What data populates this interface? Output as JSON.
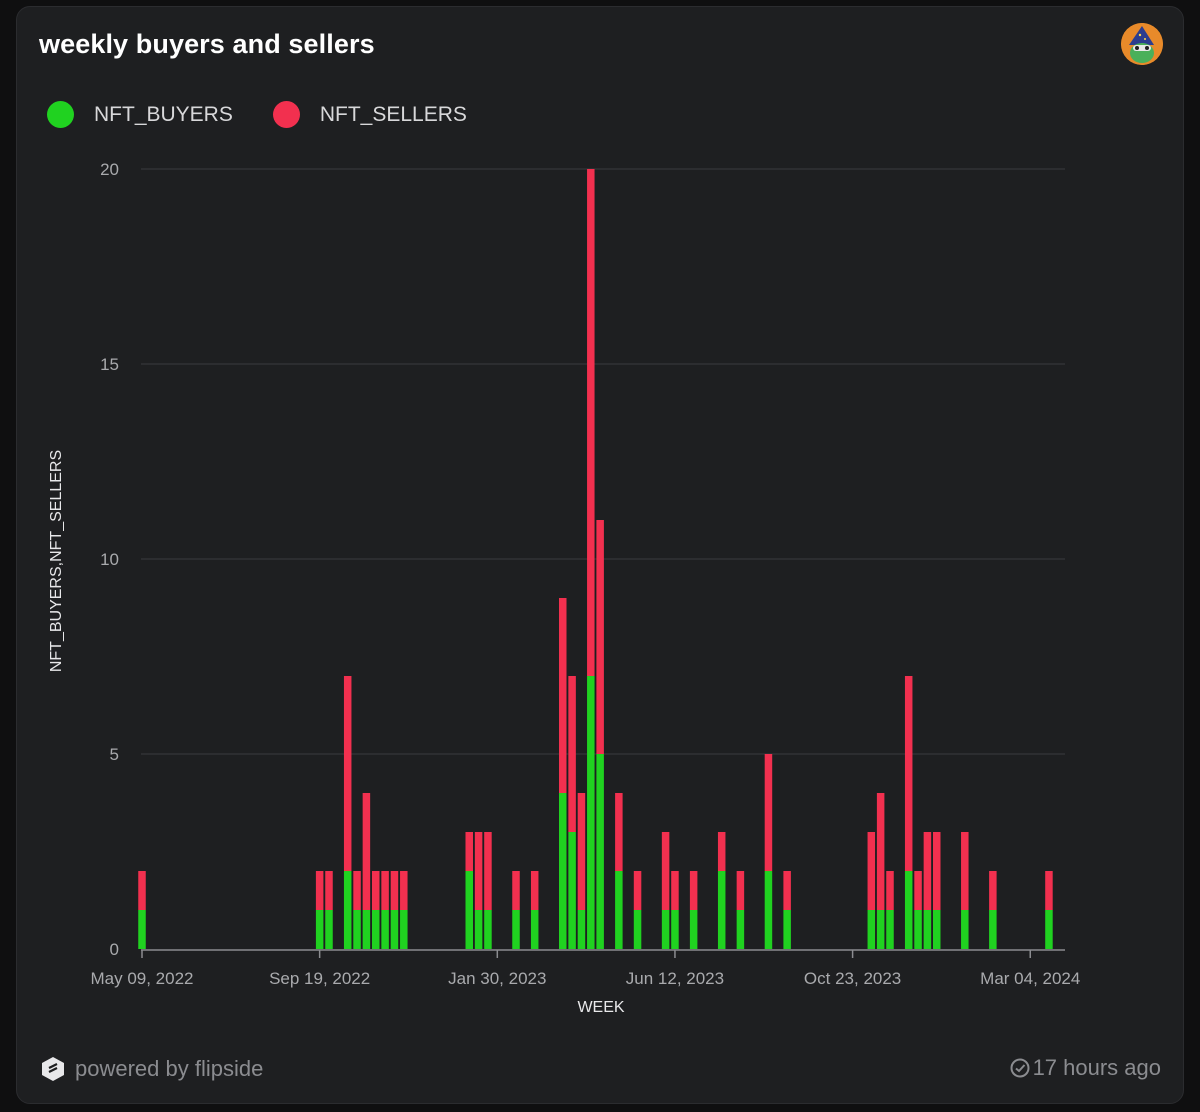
{
  "card": {
    "title": "weekly buyers and sellers",
    "powered_by": "powered by flipside",
    "updated": "17 hours ago"
  },
  "colors": {
    "buyers": "#20d220",
    "sellers": "#f2304f"
  },
  "chart_data": {
    "type": "bar",
    "stacked": true,
    "title": "weekly buyers and sellers",
    "xlabel": "WEEK",
    "ylabel": "NFT_BUYERS,NFT_SELLERS",
    "ylim": [
      0,
      20
    ],
    "yticks": [
      0,
      5,
      10,
      15,
      20
    ],
    "week_range": [
      "May 09, 2022",
      "Apr 01, 2024"
    ],
    "xticks": [
      {
        "label": "May 09, 2022",
        "week": 0
      },
      {
        "label": "Sep 19, 2022",
        "week": 19
      },
      {
        "label": "Jan 30, 2023",
        "week": 38
      },
      {
        "label": "Jun 12, 2023",
        "week": 57
      },
      {
        "label": "Oct 23, 2023",
        "week": 76
      },
      {
        "label": "Mar 04, 2024",
        "week": 95
      }
    ],
    "legend": [
      {
        "name": "NFT_BUYERS",
        "color": "#20d220"
      },
      {
        "name": "NFT_SELLERS",
        "color": "#f2304f"
      }
    ],
    "weeks": [
      0,
      19,
      20,
      22,
      23,
      24,
      25,
      26,
      27,
      28,
      35,
      36,
      37,
      40,
      42,
      45,
      46,
      47,
      48,
      49,
      51,
      53,
      56,
      57,
      59,
      62,
      64,
      67,
      69,
      78,
      79,
      80,
      82,
      83,
      84,
      85,
      88,
      91,
      97
    ],
    "series": [
      {
        "name": "NFT_BUYERS",
        "values": [
          1,
          1,
          1,
          2,
          1,
          1,
          1,
          1,
          1,
          1,
          2,
          1,
          1,
          1,
          1,
          4,
          3,
          1,
          7,
          5,
          2,
          1,
          1,
          1,
          1,
          2,
          1,
          2,
          1,
          1,
          1,
          1,
          2,
          1,
          1,
          1,
          1,
          1,
          1
        ]
      },
      {
        "name": "NFT_SELLERS",
        "values": [
          1,
          1,
          1,
          5,
          1,
          3,
          1,
          1,
          1,
          1,
          1,
          2,
          2,
          1,
          1,
          5,
          4,
          3,
          13,
          6,
          2,
          1,
          2,
          1,
          1,
          1,
          1,
          3,
          1,
          2,
          3,
          1,
          5,
          1,
          2,
          2,
          2,
          1,
          1
        ]
      }
    ]
  }
}
